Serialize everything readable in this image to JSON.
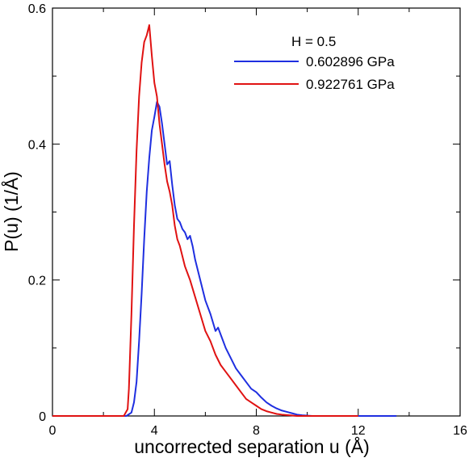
{
  "chart_data": {
    "type": "line",
    "title": "",
    "xlabel": "uncorrected separation u (Å)",
    "ylabel": "P(u) (1/Å)",
    "xlim": [
      0,
      16
    ],
    "ylim": [
      0,
      0.6
    ],
    "xticks": [
      0,
      4,
      8,
      12,
      16
    ],
    "xtick_labels": [
      "0",
      "4",
      "8",
      "12",
      "16"
    ],
    "yticks": [
      0,
      0.2,
      0.4,
      0.6
    ],
    "ytick_labels": [
      "0",
      "0.2",
      "0.4",
      "0.6"
    ],
    "grid": false,
    "legend": {
      "title": "H = 0.5",
      "placement": "top-right"
    },
    "series": [
      {
        "name": "0.602896 GPa",
        "color": "#1f2fe0",
        "x": [
          0,
          2.9,
          3.1,
          3.2,
          3.3,
          3.4,
          3.5,
          3.6,
          3.7,
          3.8,
          3.9,
          4.0,
          4.1,
          4.2,
          4.3,
          4.4,
          4.5,
          4.6,
          4.7,
          4.8,
          4.9,
          5.0,
          5.1,
          5.2,
          5.3,
          5.4,
          5.5,
          5.6,
          5.8,
          6.0,
          6.2,
          6.4,
          6.5,
          6.6,
          6.8,
          7.0,
          7.2,
          7.4,
          7.6,
          7.8,
          8.0,
          8.2,
          8.4,
          8.6,
          8.8,
          9.0,
          9.2,
          9.4,
          9.6,
          9.8,
          10.2,
          11,
          12,
          13.5
        ],
        "y": [
          0,
          0,
          0.005,
          0.02,
          0.05,
          0.11,
          0.18,
          0.26,
          0.33,
          0.38,
          0.42,
          0.44,
          0.462,
          0.455,
          0.43,
          0.4,
          0.37,
          0.375,
          0.34,
          0.31,
          0.29,
          0.285,
          0.275,
          0.27,
          0.26,
          0.265,
          0.25,
          0.23,
          0.2,
          0.17,
          0.15,
          0.125,
          0.13,
          0.12,
          0.1,
          0.085,
          0.07,
          0.06,
          0.05,
          0.04,
          0.035,
          0.027,
          0.02,
          0.015,
          0.011,
          0.008,
          0.006,
          0.004,
          0.002,
          0.001,
          0,
          0,
          0,
          0
        ]
      },
      {
        "name": "0.922761 GPa",
        "color": "#e01212",
        "x": [
          0,
          2.8,
          2.95,
          3.0,
          3.1,
          3.2,
          3.3,
          3.4,
          3.5,
          3.6,
          3.7,
          3.8,
          3.9,
          4.0,
          4.1,
          4.2,
          4.3,
          4.4,
          4.5,
          4.6,
          4.7,
          4.8,
          4.9,
          5.0,
          5.1,
          5.2,
          5.3,
          5.4,
          5.6,
          5.8,
          6.0,
          6.2,
          6.4,
          6.6,
          6.8,
          7.0,
          7.2,
          7.4,
          7.6,
          7.8,
          8.0,
          8.2,
          8.4,
          8.6,
          8.8,
          9.0,
          9.3,
          9.6,
          10,
          11,
          12
        ],
        "y": [
          0,
          0,
          0.01,
          0.04,
          0.15,
          0.28,
          0.39,
          0.47,
          0.52,
          0.55,
          0.56,
          0.575,
          0.53,
          0.49,
          0.47,
          0.43,
          0.4,
          0.37,
          0.345,
          0.33,
          0.31,
          0.28,
          0.26,
          0.25,
          0.235,
          0.22,
          0.21,
          0.2,
          0.175,
          0.15,
          0.125,
          0.11,
          0.09,
          0.075,
          0.065,
          0.055,
          0.045,
          0.035,
          0.025,
          0.02,
          0.015,
          0.01,
          0.007,
          0.005,
          0.003,
          0.002,
          0.001,
          0,
          0,
          0,
          0
        ]
      }
    ]
  }
}
